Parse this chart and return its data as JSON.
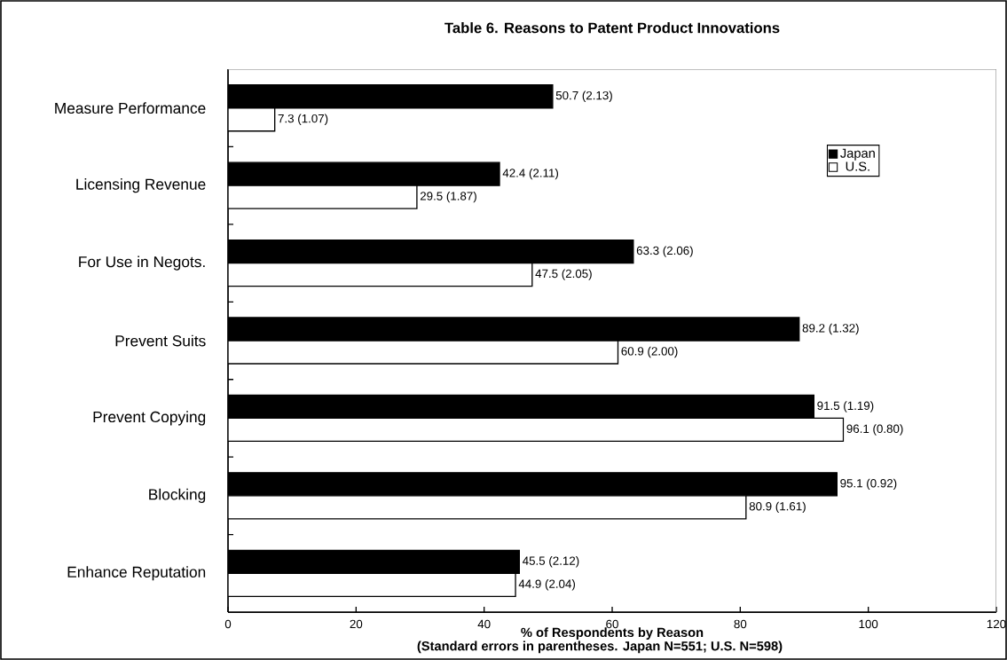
{
  "chart_data": {
    "type": "bar",
    "orientation": "horizontal",
    "title": "Table 6. Reasons to Patent Product Innovations",
    "categories": [
      "Measure Performance",
      "Licensing Revenue",
      "For Use in Negots.",
      "Prevent Suits",
      "Prevent Copying",
      "Blocking",
      "Enhance Reputation"
    ],
    "series": [
      {
        "name": "Japan",
        "color": "#000000",
        "values": [
          50.7,
          42.4,
          63.3,
          89.2,
          91.5,
          95.1,
          45.5
        ],
        "value_labels": [
          "50.7 (2.13)",
          "42.4 (2.11)",
          "63.3 (2.06)",
          "89.2 (1.32)",
          "91.5 (1.19)",
          "95.1 (0.92)",
          "45.5 (2.12)"
        ]
      },
      {
        "name": "U.S.",
        "color": "#ffffff",
        "values": [
          7.3,
          29.5,
          47.5,
          60.9,
          96.1,
          80.9,
          44.9
        ],
        "value_labels": [
          "7.3 (1.07)",
          "29.5 (1.87)",
          "47.5 (2.05)",
          "60.9 (2.00)",
          "96.1 (0.80)",
          "80.9 (1.61)",
          "44.9 (2.04)"
        ]
      }
    ],
    "xlabel": "% of Respondents by Reason",
    "annotations": [
      "(Standard errors in parentheses. Japan N=551; U.S. N=598)"
    ],
    "xlim": [
      0,
      120
    ],
    "xticks": [
      0,
      20,
      40,
      60,
      80,
      100,
      120
    ],
    "grid": false,
    "legend": "top right"
  }
}
